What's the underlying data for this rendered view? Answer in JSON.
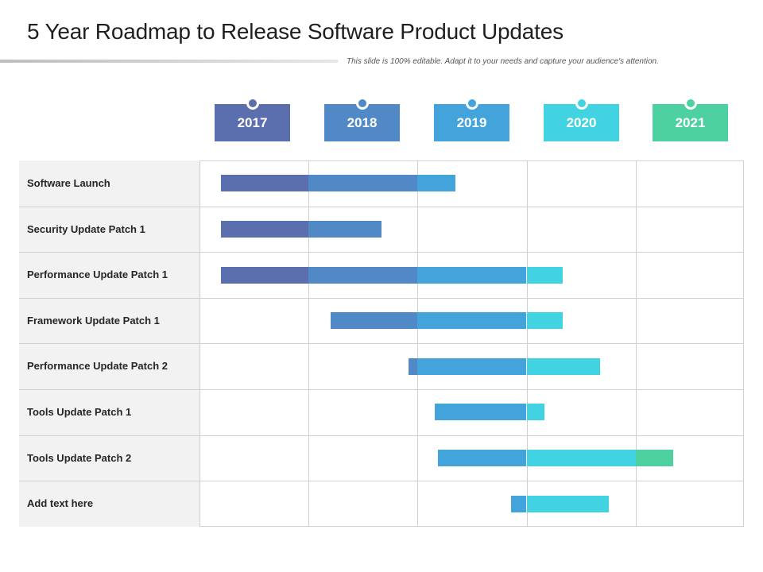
{
  "header": {
    "title": "5 Year Roadmap to Release Software Product Updates",
    "subtitle": "This slide is 100% editable. Adapt it to your needs and capture your audience's attention."
  },
  "timeline": {
    "years": [
      {
        "label": "2017",
        "color": "#5b6fae"
      },
      {
        "label": "2018",
        "color": "#5089c6"
      },
      {
        "label": "2019",
        "color": "#43a4dc"
      },
      {
        "label": "2020",
        "color": "#42d3e3"
      },
      {
        "label": "2021",
        "color": "#4ed1a0"
      }
    ]
  },
  "chart_data": {
    "type": "gantt",
    "x_unit": "year",
    "x_range": [
      2017,
      2022
    ],
    "rows": [
      {
        "label": "Software Launch",
        "start": 2017.2,
        "end": 2019.35
      },
      {
        "label": "Security Update Patch 1",
        "start": 2017.2,
        "end": 2018.67
      },
      {
        "label": "Performance Update Patch 1",
        "start": 2017.2,
        "end": 2020.33
      },
      {
        "label": "Framework Update Patch 1",
        "start": 2018.2,
        "end": 2020.33
      },
      {
        "label": "Performance Update Patch 2",
        "start": 2018.92,
        "end": 2020.67
      },
      {
        "label": "Tools Update Patch 1",
        "start": 2019.16,
        "end": 2020.16
      },
      {
        "label": "Tools Update Patch 2",
        "start": 2019.19,
        "end": 2021.34
      },
      {
        "label": "Add text here",
        "start": 2019.86,
        "end": 2020.75
      }
    ]
  }
}
